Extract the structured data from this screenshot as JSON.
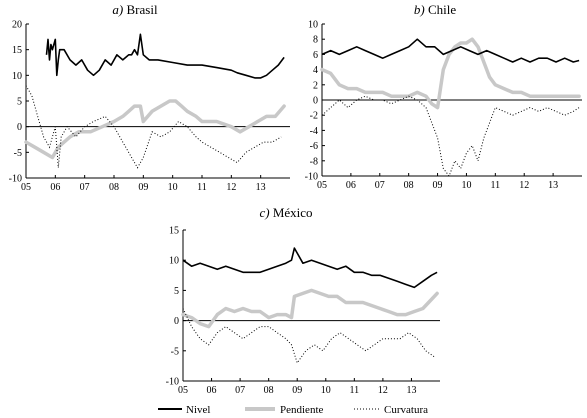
{
  "colors": {
    "nivel": "#000000",
    "pendiente": "#c8c8c8",
    "curvatura": "#000000",
    "axis": "#000000"
  },
  "legend": {
    "placement": "bottom-center",
    "items": [
      "Nivel",
      "Pendiente",
      "Curvatura"
    ]
  },
  "chart_data": [
    {
      "type": "line",
      "title_prefix": "a)",
      "title_name": "Brasil",
      "xlabel": "",
      "ylabel": "",
      "xlim": [
        2005.0,
        2014.0
      ],
      "ylim": [
        -10,
        20
      ],
      "xtick_labels": [
        "05",
        "06",
        "07",
        "08",
        "09",
        "10",
        "11",
        "12",
        "13"
      ],
      "xtick_values": [
        2005,
        2006,
        2007,
        2008,
        2009,
        2010,
        2011,
        2012,
        2013
      ],
      "ytick_values": [
        -10,
        -5,
        0,
        5,
        10,
        15,
        20
      ],
      "ytick_labels": [
        "-10",
        "-5",
        "0",
        "5",
        "10",
        "15",
        "20"
      ],
      "grid": false,
      "series": [
        {
          "name": "Nivel",
          "style": "solid",
          "x": [
            2005.7,
            2005.75,
            2005.8,
            2005.85,
            2005.9,
            2006.0,
            2006.05,
            2006.1,
            2006.15,
            2006.3,
            2006.5,
            2006.7,
            2006.9,
            2007.1,
            2007.3,
            2007.5,
            2007.7,
            2007.9,
            2008.1,
            2008.3,
            2008.5,
            2008.6,
            2008.7,
            2008.8,
            2008.9,
            2009.0,
            2009.2,
            2009.5,
            2010.0,
            2010.5,
            2011.0,
            2011.5,
            2012.0,
            2012.2,
            2012.5,
            2012.8,
            2013.0,
            2013.2,
            2013.4,
            2013.6,
            2013.8
          ],
          "y": [
            14,
            17,
            13,
            16,
            15,
            17,
            10,
            13,
            15,
            15,
            13,
            12,
            13,
            11,
            10,
            11,
            13,
            12,
            14,
            13,
            14,
            14,
            15,
            14,
            18,
            14,
            13,
            13,
            12.5,
            12,
            12,
            11.5,
            11,
            10.5,
            10,
            9.5,
            9.5,
            10,
            11,
            12,
            13.5
          ]
        },
        {
          "name": "Pendiente",
          "style": "thick",
          "x": [
            2005.0,
            2005.3,
            2005.6,
            2005.9,
            2006.1,
            2006.3,
            2006.5,
            2006.8,
            2007.2,
            2007.6,
            2008.0,
            2008.3,
            2008.5,
            2008.7,
            2008.9,
            2009.0,
            2009.3,
            2009.6,
            2009.9,
            2010.1,
            2010.3,
            2010.5,
            2010.8,
            2011.0,
            2011.5,
            2012.0,
            2012.3,
            2012.6,
            2012.9,
            2013.2,
            2013.5,
            2013.8
          ],
          "y": [
            -3,
            -4,
            -5,
            -6,
            -4,
            -3,
            -2,
            -1,
            -1,
            0,
            1,
            2,
            3,
            4,
            4,
            1,
            3,
            4,
            5,
            5,
            4,
            3,
            2,
            1,
            1,
            0,
            -1,
            0,
            1,
            2,
            2,
            4
          ]
        },
        {
          "name": "Curvatura",
          "style": "dotted",
          "x": [
            2005.0,
            2005.2,
            2005.4,
            2005.6,
            2005.8,
            2006.0,
            2006.1,
            2006.2,
            2006.4,
            2006.7,
            2007.0,
            2007.3,
            2007.7,
            2008.0,
            2008.3,
            2008.6,
            2008.8,
            2009.0,
            2009.3,
            2009.6,
            2009.9,
            2010.2,
            2010.5,
            2010.8,
            2011.0,
            2011.3,
            2011.6,
            2011.9,
            2012.2,
            2012.5,
            2012.8,
            2013.1,
            2013.4,
            2013.7
          ],
          "y": [
            8,
            6,
            2,
            -2,
            -4,
            0,
            -8,
            -2,
            0,
            -2,
            0,
            1,
            2,
            0,
            -3,
            -6,
            -8,
            -6,
            -1,
            -2,
            -1,
            1,
            0,
            -2,
            -3,
            -4,
            -5,
            -6,
            -7,
            -5,
            -4,
            -3,
            -3,
            -2
          ]
        }
      ]
    },
    {
      "type": "line",
      "title_prefix": "b)",
      "title_name": "Chile",
      "xlabel": "",
      "ylabel": "",
      "xlim": [
        2005.0,
        2014.0
      ],
      "ylim": [
        -10,
        10
      ],
      "xtick_labels": [
        "05",
        "06",
        "07",
        "08",
        "09",
        "10",
        "11",
        "12",
        "13"
      ],
      "xtick_values": [
        2005,
        2006,
        2007,
        2008,
        2009,
        2010,
        2011,
        2012,
        2013
      ],
      "ytick_values": [
        -10,
        -8,
        -6,
        -4,
        -2,
        0,
        2,
        4,
        6,
        8,
        10
      ],
      "ytick_labels": [
        "-10",
        "-8",
        "-6",
        "-4",
        "-2",
        "0",
        "2",
        "4",
        "6",
        "8",
        "10"
      ],
      "grid": false,
      "series": [
        {
          "name": "Nivel",
          "style": "solid",
          "x": [
            2005.0,
            2005.3,
            2005.6,
            2005.9,
            2006.2,
            2006.5,
            2006.8,
            2007.1,
            2007.4,
            2007.7,
            2008.0,
            2008.3,
            2008.6,
            2008.9,
            2009.2,
            2009.5,
            2009.8,
            2010.1,
            2010.4,
            2010.7,
            2011.0,
            2011.3,
            2011.6,
            2011.9,
            2012.2,
            2012.5,
            2012.8,
            2013.1,
            2013.4,
            2013.7,
            2013.9
          ],
          "y": [
            6,
            6.5,
            6,
            6.5,
            7,
            6.5,
            6,
            5.5,
            6,
            6.5,
            7,
            8,
            7,
            7,
            6,
            6.5,
            7,
            6.5,
            6,
            6.5,
            6,
            5.5,
            5,
            5.5,
            5,
            5.5,
            5.5,
            5,
            5.5,
            5,
            5.2
          ]
        },
        {
          "name": "Pendiente",
          "style": "thick",
          "x": [
            2005.0,
            2005.3,
            2005.6,
            2005.9,
            2006.2,
            2006.5,
            2006.8,
            2007.1,
            2007.4,
            2007.7,
            2008.0,
            2008.3,
            2008.6,
            2008.8,
            2009.0,
            2009.2,
            2009.4,
            2009.6,
            2009.8,
            2010.0,
            2010.2,
            2010.4,
            2010.6,
            2010.8,
            2011.0,
            2011.3,
            2011.6,
            2011.9,
            2012.2,
            2012.5,
            2012.8,
            2013.1,
            2013.4,
            2013.7,
            2013.9
          ],
          "y": [
            4,
            3.5,
            2,
            1.5,
            1.5,
            1,
            1,
            1,
            0.5,
            0.5,
            0.5,
            1,
            0.5,
            -0.5,
            -1,
            4,
            6,
            7,
            7.5,
            7.5,
            8,
            7,
            5,
            3,
            2,
            1.5,
            1,
            1,
            0.5,
            0.5,
            0.5,
            0.5,
            0.5,
            0.5,
            0.5
          ]
        },
        {
          "name": "Curvatura",
          "style": "dotted",
          "x": [
            2005.0,
            2005.3,
            2005.6,
            2005.9,
            2006.2,
            2006.5,
            2006.8,
            2007.1,
            2007.4,
            2007.7,
            2008.0,
            2008.3,
            2008.6,
            2008.8,
            2009.0,
            2009.2,
            2009.4,
            2009.6,
            2009.8,
            2010.0,
            2010.2,
            2010.4,
            2010.6,
            2010.8,
            2011.0,
            2011.3,
            2011.6,
            2011.9,
            2012.2,
            2012.5,
            2012.8,
            2013.1,
            2013.4,
            2013.7,
            2013.9
          ],
          "y": [
            -2,
            -1,
            0,
            -1,
            0,
            0.5,
            0,
            0,
            -0.5,
            0,
            0.5,
            0,
            -1,
            -3,
            -5,
            -9,
            -10,
            -8,
            -9,
            -7,
            -6,
            -8,
            -5,
            -3,
            -1,
            -1.5,
            -2,
            -1.5,
            -1,
            -1.5,
            -1,
            -1.5,
            -2,
            -1.5,
            -1
          ]
        }
      ]
    },
    {
      "type": "line",
      "title_prefix": "c)",
      "title_name": "México",
      "xlabel": "",
      "ylabel": "",
      "xlim": [
        2005.0,
        2014.0
      ],
      "ylim": [
        -10,
        15
      ],
      "xtick_labels": [
        "05",
        "06",
        "07",
        "08",
        "09",
        "10",
        "11",
        "12",
        "13"
      ],
      "xtick_values": [
        2005,
        2006,
        2007,
        2008,
        2009,
        2010,
        2011,
        2012,
        2013
      ],
      "ytick_values": [
        -10,
        -5,
        0,
        5,
        10,
        15
      ],
      "ytick_labels": [
        "-10",
        "-5",
        "0",
        "5",
        "10",
        "15"
      ],
      "grid": false,
      "series": [
        {
          "name": "Nivel",
          "style": "solid",
          "x": [
            2005.0,
            2005.3,
            2005.6,
            2005.9,
            2006.2,
            2006.5,
            2006.8,
            2007.1,
            2007.4,
            2007.7,
            2008.0,
            2008.3,
            2008.6,
            2008.8,
            2008.9,
            2009.2,
            2009.5,
            2009.8,
            2010.1,
            2010.4,
            2010.7,
            2011.0,
            2011.3,
            2011.6,
            2011.9,
            2012.2,
            2012.5,
            2012.8,
            2013.1,
            2013.4,
            2013.7,
            2013.9
          ],
          "y": [
            10,
            9,
            9.5,
            9,
            8.5,
            9,
            8.5,
            8,
            8,
            8,
            8.5,
            9,
            9.5,
            10,
            12,
            9.5,
            10,
            9.5,
            9,
            8.5,
            9,
            8,
            8,
            7.5,
            7.5,
            7,
            6.5,
            6,
            5.5,
            6.5,
            7.5,
            8
          ]
        },
        {
          "name": "Pendiente",
          "style": "thick",
          "x": [
            2005.0,
            2005.3,
            2005.6,
            2005.9,
            2006.2,
            2006.5,
            2006.8,
            2007.1,
            2007.4,
            2007.7,
            2008.0,
            2008.3,
            2008.6,
            2008.8,
            2008.9,
            2009.2,
            2009.5,
            2009.8,
            2010.1,
            2010.4,
            2010.7,
            2011.0,
            2011.3,
            2011.6,
            2011.9,
            2012.2,
            2012.5,
            2012.8,
            2013.1,
            2013.4,
            2013.7,
            2013.9
          ],
          "y": [
            1,
            0.5,
            -0.5,
            -1,
            1,
            2,
            1.5,
            2,
            1.5,
            1.5,
            0.5,
            1,
            1,
            0.5,
            4,
            4.5,
            5,
            4.5,
            4,
            4,
            3,
            3,
            3,
            2.5,
            2,
            1.5,
            1,
            1,
            1.5,
            2,
            3.5,
            4.5
          ]
        },
        {
          "name": "Curvatura",
          "style": "dotted",
          "x": [
            2005.0,
            2005.3,
            2005.6,
            2005.9,
            2006.2,
            2006.5,
            2006.8,
            2007.1,
            2007.4,
            2007.7,
            2008.0,
            2008.3,
            2008.6,
            2008.8,
            2009.0,
            2009.3,
            2009.6,
            2009.9,
            2010.2,
            2010.5,
            2010.8,
            2011.1,
            2011.4,
            2011.7,
            2012.0,
            2012.3,
            2012.6,
            2012.9,
            2013.2,
            2013.5,
            2013.8
          ],
          "y": [
            2,
            -1,
            -3,
            -4,
            -2,
            -1,
            -2,
            -3,
            -2,
            -1,
            -1,
            -2,
            -3,
            -4,
            -7,
            -5,
            -4,
            -5,
            -3,
            -2,
            -3,
            -4,
            -5,
            -4,
            -3,
            -3,
            -3,
            -2,
            -3,
            -5,
            -6
          ]
        }
      ]
    }
  ]
}
